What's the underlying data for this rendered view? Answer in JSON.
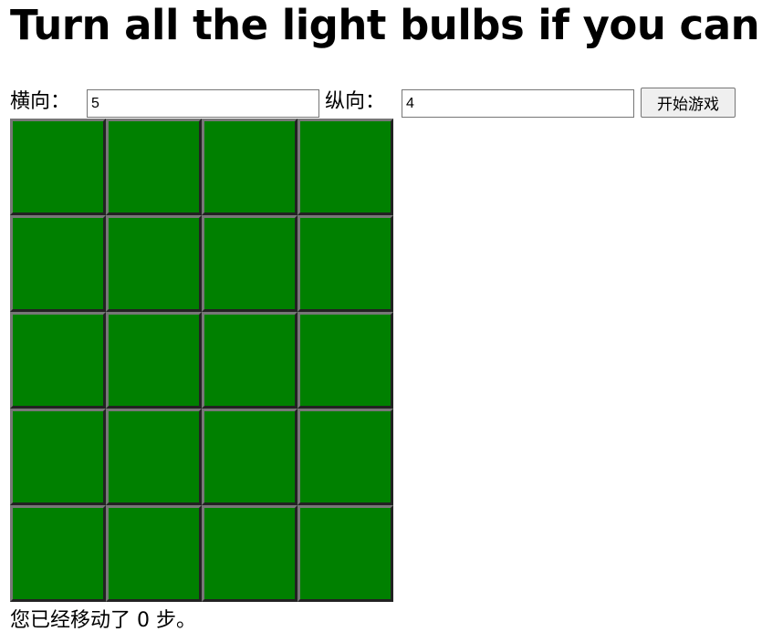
{
  "header": {
    "title": "Turn all the light bulbs if you can!"
  },
  "controls": {
    "rows_label": "横向：",
    "rows_value": 5,
    "cols_label": "纵向：",
    "cols_value": 4,
    "start_button": "开始游戏"
  },
  "board": {
    "cell_color": "#008000"
  },
  "status": "您已经移动了 0 步。"
}
